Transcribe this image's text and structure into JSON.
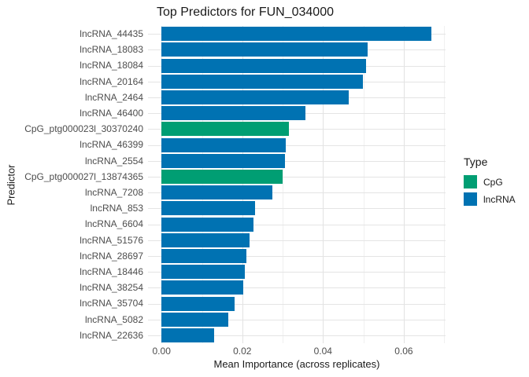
{
  "chart_data": {
    "type": "bar",
    "orientation": "horizontal",
    "title": "Top Predictors for FUN_034000",
    "xlabel": "Mean Importance (across replicates)",
    "ylabel": "Predictor",
    "categories": [
      "lncRNA_44435",
      "lncRNA_18083",
      "lncRNA_18084",
      "lncRNA_20164",
      "lncRNA_2464",
      "lncRNA_46400",
      "CpG_ptg000023l_30370240",
      "lncRNA_46399",
      "lncRNA_2554",
      "CpG_ptg000027l_13874365",
      "lncRNA_7208",
      "lncRNA_853",
      "lncRNA_6604",
      "lncRNA_51576",
      "lncRNA_28697",
      "lncRNA_18446",
      "lncRNA_38254",
      "lncRNA_35704",
      "lncRNA_5082",
      "lncRNA_22636"
    ],
    "values": [
      0.0669,
      0.0511,
      0.0506,
      0.0498,
      0.0464,
      0.0356,
      0.0316,
      0.0308,
      0.0306,
      0.0299,
      0.0274,
      0.0232,
      0.0228,
      0.0219,
      0.021,
      0.0207,
      0.0202,
      0.0181,
      0.0165,
      0.013
    ],
    "bar_types": [
      "lncRNA",
      "lncRNA",
      "lncRNA",
      "lncRNA",
      "lncRNA",
      "lncRNA",
      "CpG",
      "lncRNA",
      "lncRNA",
      "CpG",
      "lncRNA",
      "lncRNA",
      "lncRNA",
      "lncRNA",
      "lncRNA",
      "lncRNA",
      "lncRNA",
      "lncRNA",
      "lncRNA",
      "lncRNA"
    ],
    "colors": {
      "CpG": "#009E73",
      "lncRNA": "#0072B2"
    },
    "x_ticks": [
      0.0,
      0.02,
      0.04,
      0.06
    ],
    "x_tick_labels": [
      "0.00",
      "0.02",
      "0.04",
      "0.06"
    ],
    "x_minor_gridlines": [
      0.01,
      0.03,
      0.05,
      0.07
    ],
    "xlim": [
      -0.00335,
      0.07035
    ],
    "grid": true,
    "legend": {
      "title": "Type",
      "position": "right",
      "entries": [
        {
          "label": "CpG",
          "color": "#009E73"
        },
        {
          "label": "lncRNA",
          "color": "#0072B2"
        }
      ]
    }
  }
}
